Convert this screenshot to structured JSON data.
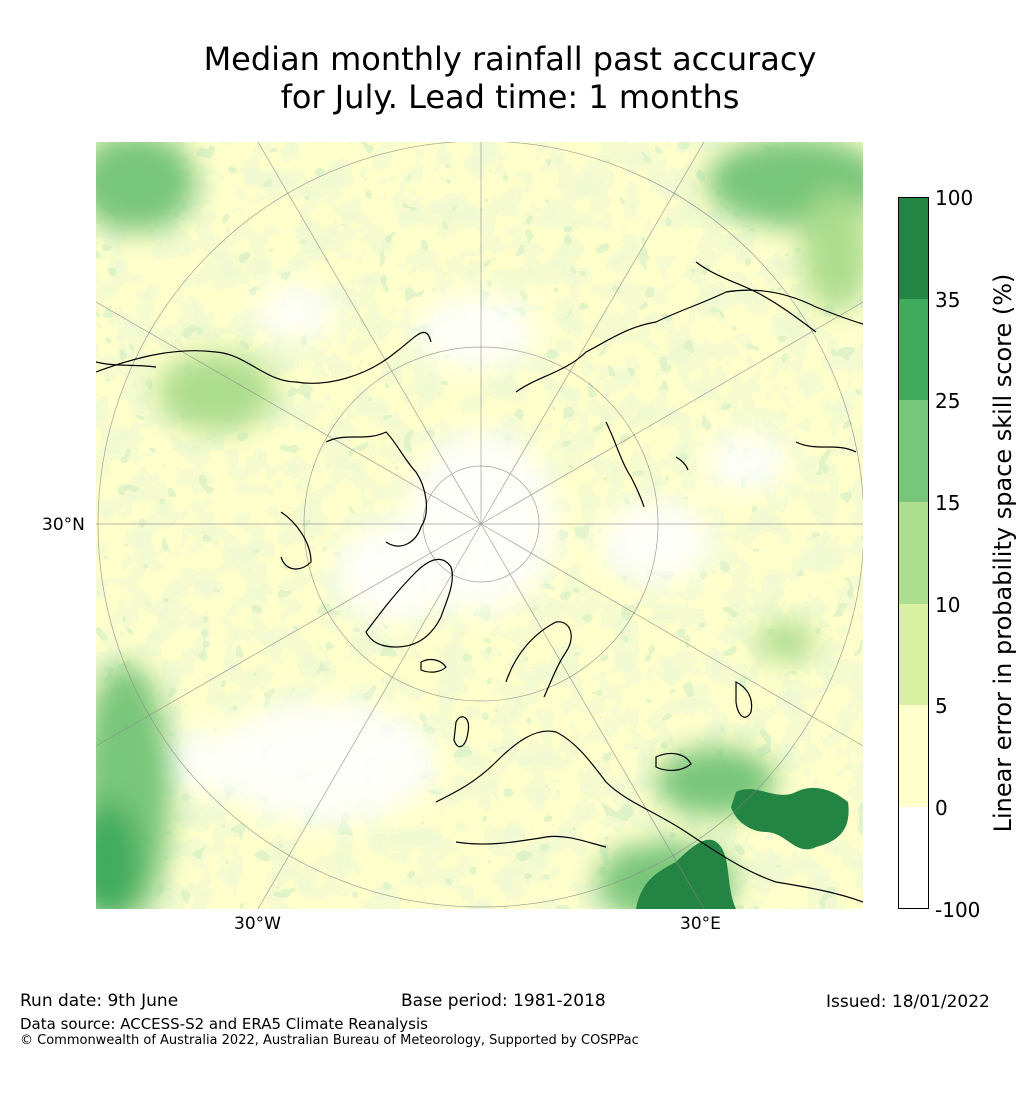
{
  "title_line1": "Median monthly rainfall past accuracy",
  "title_line2": "for July. Lead time: 1 months",
  "map": {
    "projection": "north-polar-stereographic",
    "labels": {
      "lat_30n": "30°N",
      "lon_30w": "30°W",
      "lon_30e": "30°E"
    },
    "colors": {
      "land_outline": "#000000",
      "gridlines": "#888888"
    }
  },
  "colorbar": {
    "label": "Linear error in probability space skill score (%)",
    "ticks": [
      "100",
      "35",
      "25",
      "15",
      "10",
      "5",
      "0",
      "-100"
    ],
    "bins": [
      {
        "range": "35 to 100",
        "color": "#238443"
      },
      {
        "range": "25 to 35",
        "color": "#41ab5d"
      },
      {
        "range": "15 to 25",
        "color": "#78c679"
      },
      {
        "range": "10 to 15",
        "color": "#addd8e"
      },
      {
        "range": "5 to 10",
        "color": "#d9f0a3"
      },
      {
        "range": "0 to 5",
        "color": "#ffffcc"
      },
      {
        "range": "-100 to 0",
        "color": "#ffffff"
      }
    ]
  },
  "footer": {
    "run_date": "Run date: 9th June",
    "base_period": "Base period: 1981-2018",
    "issued": "Issued: 18/01/2022",
    "data_source": "Data source: ACCESS-S2 and ERA5 Climate Reanalysis",
    "copyright": "© Commonwealth of Australia 2022, Australian Bureau of Meteorology, Supported by COSPPac"
  }
}
